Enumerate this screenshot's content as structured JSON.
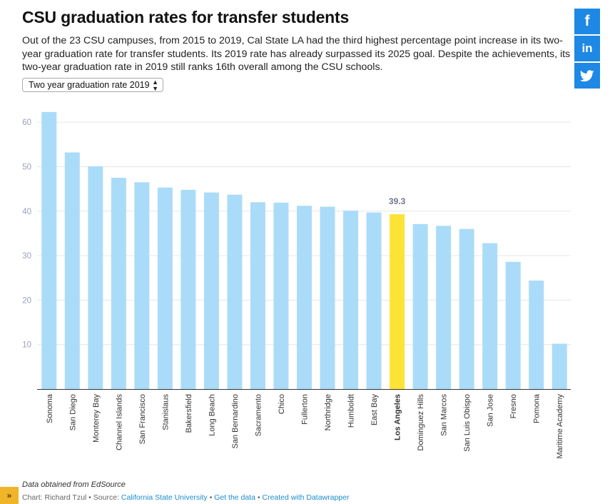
{
  "header": {
    "title": "CSU graduation rates for transfer students",
    "description": "Out of the 23 CSU campuses, from 2015 to 2019, Cal State LA had the third highest percentage point increase in its two-year graduation rate for transfer students. Its 2019 rate has already surpassed its 2025 goal. Despite the achievements, its two-year graduation rate in 2019 still ranks 16th overall among the CSU schools."
  },
  "selector": {
    "value": "Two year graduation rate 2019",
    "arrows": "▲▼"
  },
  "share": {
    "facebook": "f",
    "linkedin": "in",
    "twitter": "twitter-bird",
    "color": "#1e88e5"
  },
  "chart_data": {
    "type": "bar",
    "categories": [
      "Sonoma",
      "San Diego",
      "Monterey Bay",
      "Channel Islands",
      "San Francisco",
      "Stanislaus",
      "Bakersfield",
      "Long Beach",
      "San Bernardino",
      "Sacramento",
      "Chico",
      "Fullerton",
      "Northridge",
      "Humboldt",
      "East Bay",
      "Los Angeles",
      "Dominguez Hills",
      "San Marcos",
      "San Luis Obispo",
      "San Jose",
      "Fresno",
      "Pomona",
      "Maritime Academy"
    ],
    "values": [
      62.3,
      53.2,
      50.1,
      47.5,
      46.5,
      45.3,
      44.8,
      44.2,
      43.7,
      42.0,
      41.9,
      41.2,
      41.0,
      40.1,
      39.7,
      39.3,
      37.1,
      36.7,
      36.0,
      32.8,
      28.6,
      24.4,
      10.2
    ],
    "highlight": "Los Angeles",
    "highlight_label": "39.3",
    "yticks": [
      10,
      20,
      30,
      40,
      50,
      60
    ],
    "ylim": [
      0,
      65
    ],
    "xlabel": "",
    "ylabel": "",
    "grid": true,
    "colors": {
      "bar": "#aadcf9",
      "highlight": "#fde335",
      "tick": "#9a9fbf",
      "label": "#333333",
      "annotation": "#6f7591"
    }
  },
  "footer": {
    "notes": "Data obtained from EdSource",
    "byline_prefix": "Chart: Richard Tzul • Source: ",
    "source_link": "California State University",
    "separator": " • ",
    "get_data": "Get the data",
    "created_with": "Created with Datawrapper",
    "expand": "»"
  }
}
